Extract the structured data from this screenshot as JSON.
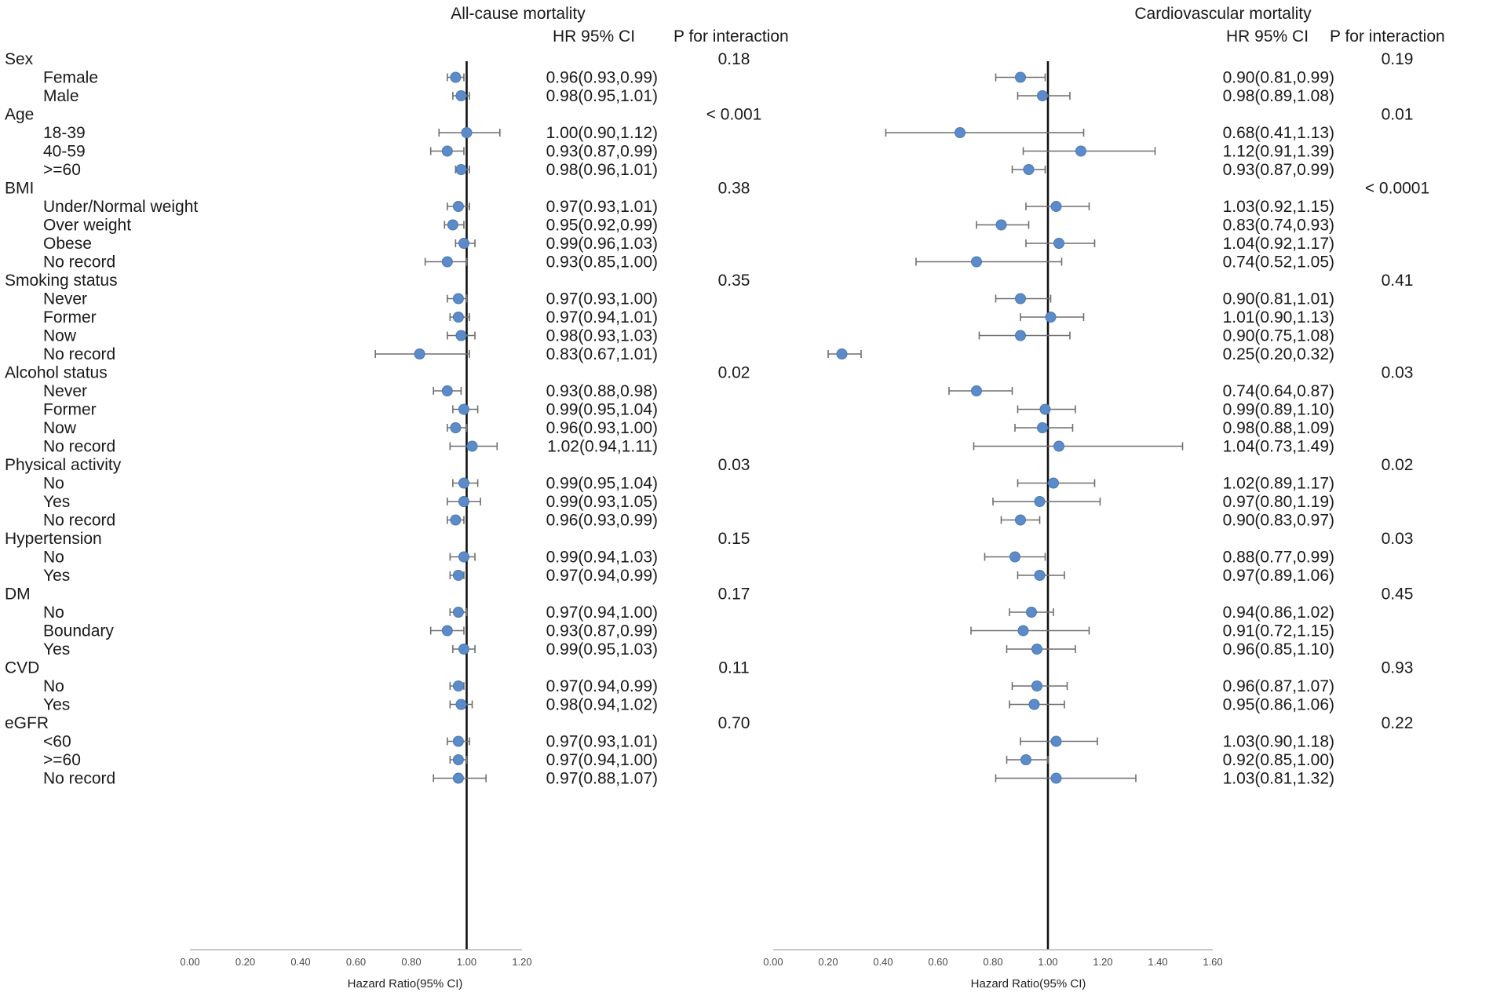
{
  "chart_data": [
    {
      "type": "forest",
      "title": "All-cause mortality",
      "hr_header": "HR 95% CI",
      "p_header": "P for interaction",
      "xlabel": "Hazard Ratio(95% CI)",
      "xlim": [
        0,
        1.2
      ],
      "ticks": [
        "0.00",
        "0.20",
        "0.40",
        "0.60",
        "0.80",
        "1.00",
        "1.20"
      ],
      "reference_line": 1.0,
      "groups": [
        {
          "label": "Sex",
          "p": "0.18",
          "rows": [
            {
              "label": "Female",
              "hr": 0.96,
              "lo": 0.93,
              "hi": 0.99,
              "text": "0.96(0.93,0.99)"
            },
            {
              "label": "Male",
              "hr": 0.98,
              "lo": 0.95,
              "hi": 1.01,
              "text": "0.98(0.95,1.01)"
            }
          ]
        },
        {
          "label": "Age",
          "p": "< 0.001",
          "rows": [
            {
              "label": "18-39",
              "hr": 1.0,
              "lo": 0.9,
              "hi": 1.12,
              "text": "1.00(0.90,1.12)"
            },
            {
              "label": "40-59",
              "hr": 0.93,
              "lo": 0.87,
              "hi": 0.99,
              "text": "0.93(0.87,0.99)"
            },
            {
              "label": ">=60",
              "hr": 0.98,
              "lo": 0.96,
              "hi": 1.01,
              "text": "0.98(0.96,1.01)"
            }
          ]
        },
        {
          "label": "BMI",
          "p": "0.38",
          "rows": [
            {
              "label": "Under/Normal weight",
              "hr": 0.97,
              "lo": 0.93,
              "hi": 1.01,
              "text": "0.97(0.93,1.01)"
            },
            {
              "label": "Over weight",
              "hr": 0.95,
              "lo": 0.92,
              "hi": 0.99,
              "text": "0.95(0.92,0.99)"
            },
            {
              "label": "Obese",
              "hr": 0.99,
              "lo": 0.96,
              "hi": 1.03,
              "text": "0.99(0.96,1.03)"
            },
            {
              "label": "No record",
              "hr": 0.93,
              "lo": 0.85,
              "hi": 1.0,
              "text": "0.93(0.85,1.00)"
            }
          ]
        },
        {
          "label": "Smoking status",
          "p": "0.35",
          "rows": [
            {
              "label": "Never",
              "hr": 0.97,
              "lo": 0.93,
              "hi": 1.0,
              "text": "0.97(0.93,1.00)"
            },
            {
              "label": "Former",
              "hr": 0.97,
              "lo": 0.94,
              "hi": 1.01,
              "text": "0.97(0.94,1.01)"
            },
            {
              "label": "Now",
              "hr": 0.98,
              "lo": 0.93,
              "hi": 1.03,
              "text": "0.98(0.93,1.03)"
            },
            {
              "label": "No record",
              "hr": 0.83,
              "lo": 0.67,
              "hi": 1.01,
              "text": "0.83(0.67,1.01)"
            }
          ]
        },
        {
          "label": "Alcohol status",
          "p": "0.02",
          "rows": [
            {
              "label": "Never",
              "hr": 0.93,
              "lo": 0.88,
              "hi": 0.98,
              "text": "0.93(0.88,0.98)"
            },
            {
              "label": "Former",
              "hr": 0.99,
              "lo": 0.95,
              "hi": 1.04,
              "text": "0.99(0.95,1.04)"
            },
            {
              "label": "Now",
              "hr": 0.96,
              "lo": 0.93,
              "hi": 1.0,
              "text": "0.96(0.93,1.00)"
            },
            {
              "label": "No record",
              "hr": 1.02,
              "lo": 0.94,
              "hi": 1.11,
              "text": "1.02(0.94,1.11)"
            }
          ]
        },
        {
          "label": "Physical activity",
          "p": "0.03",
          "rows": [
            {
              "label": "No",
              "hr": 0.99,
              "lo": 0.95,
              "hi": 1.04,
              "text": "0.99(0.95,1.04)"
            },
            {
              "label": "Yes",
              "hr": 0.99,
              "lo": 0.93,
              "hi": 1.05,
              "text": "0.99(0.93,1.05)"
            },
            {
              "label": "No record",
              "hr": 0.96,
              "lo": 0.93,
              "hi": 0.99,
              "text": "0.96(0.93,0.99)"
            }
          ]
        },
        {
          "label": "Hypertension",
          "p": "0.15",
          "rows": [
            {
              "label": "No",
              "hr": 0.99,
              "lo": 0.94,
              "hi": 1.03,
              "text": "0.99(0.94,1.03)"
            },
            {
              "label": "Yes",
              "hr": 0.97,
              "lo": 0.94,
              "hi": 0.99,
              "text": "0.97(0.94,0.99)"
            }
          ]
        },
        {
          "label": "DM",
          "p": "0.17",
          "rows": [
            {
              "label": "No",
              "hr": 0.97,
              "lo": 0.94,
              "hi": 1.0,
              "text": "0.97(0.94,1.00)"
            },
            {
              "label": "Boundary",
              "hr": 0.93,
              "lo": 0.87,
              "hi": 0.99,
              "text": "0.93(0.87,0.99)"
            },
            {
              "label": "Yes",
              "hr": 0.99,
              "lo": 0.95,
              "hi": 1.03,
              "text": "0.99(0.95,1.03)"
            }
          ]
        },
        {
          "label": "CVD",
          "p": "0.11",
          "rows": [
            {
              "label": "No",
              "hr": 0.97,
              "lo": 0.94,
              "hi": 0.99,
              "text": "0.97(0.94,0.99)"
            },
            {
              "label": "Yes",
              "hr": 0.98,
              "lo": 0.94,
              "hi": 1.02,
              "text": "0.98(0.94,1.02)"
            }
          ]
        },
        {
          "label": "eGFR",
          "p": "0.70",
          "rows": [
            {
              "label": "<60",
              "hr": 0.97,
              "lo": 0.93,
              "hi": 1.01,
              "text": "0.97(0.93,1.01)"
            },
            {
              "label": ">=60",
              "hr": 0.97,
              "lo": 0.94,
              "hi": 1.0,
              "text": "0.97(0.94,1.00)"
            },
            {
              "label": "No record",
              "hr": 0.97,
              "lo": 0.88,
              "hi": 1.07,
              "text": "0.97(0.88,1.07)"
            }
          ]
        }
      ]
    },
    {
      "type": "forest",
      "title": "Cardiovascular mortality",
      "hr_header": "HR 95% CI",
      "p_header": "P for interaction",
      "xlabel": "Hazard Ratio(95% CI)",
      "xlim": [
        0,
        1.6
      ],
      "ticks": [
        "0.00",
        "0.20",
        "0.40",
        "0.60",
        "0.80",
        "1.00",
        "1.20",
        "1.40",
        "1.60"
      ],
      "reference_line": 1.0,
      "groups": [
        {
          "label": "Sex",
          "p": "0.19",
          "rows": [
            {
              "label": "Female",
              "hr": 0.9,
              "lo": 0.81,
              "hi": 0.99,
              "text": "0.90(0.81,0.99)"
            },
            {
              "label": "Male",
              "hr": 0.98,
              "lo": 0.89,
              "hi": 1.08,
              "text": "0.98(0.89,1.08)"
            }
          ]
        },
        {
          "label": "Age",
          "p": "0.01",
          "rows": [
            {
              "label": "18-39",
              "hr": 0.68,
              "lo": 0.41,
              "hi": 1.13,
              "text": "0.68(0.41,1.13)"
            },
            {
              "label": "40-59",
              "hr": 1.12,
              "lo": 0.91,
              "hi": 1.39,
              "text": "1.12(0.91,1.39)"
            },
            {
              "label": ">=60",
              "hr": 0.93,
              "lo": 0.87,
              "hi": 0.99,
              "text": "0.93(0.87,0.99)"
            }
          ]
        },
        {
          "label": "BMI",
          "p": "< 0.0001",
          "rows": [
            {
              "label": "Under/Normal weight",
              "hr": 1.03,
              "lo": 0.92,
              "hi": 1.15,
              "text": "1.03(0.92,1.15)"
            },
            {
              "label": "Over weight",
              "hr": 0.83,
              "lo": 0.74,
              "hi": 0.93,
              "text": "0.83(0.74,0.93)"
            },
            {
              "label": "Obese",
              "hr": 1.04,
              "lo": 0.92,
              "hi": 1.17,
              "text": "1.04(0.92,1.17)"
            },
            {
              "label": "No record",
              "hr": 0.74,
              "lo": 0.52,
              "hi": 1.05,
              "text": "0.74(0.52,1.05)"
            }
          ]
        },
        {
          "label": "Smoking status",
          "p": "0.41",
          "rows": [
            {
              "label": "Never",
              "hr": 0.9,
              "lo": 0.81,
              "hi": 1.01,
              "text": "0.90(0.81,1.01)"
            },
            {
              "label": "Former",
              "hr": 1.01,
              "lo": 0.9,
              "hi": 1.13,
              "text": "1.01(0.90,1.13)"
            },
            {
              "label": "Now",
              "hr": 0.9,
              "lo": 0.75,
              "hi": 1.08,
              "text": "0.90(0.75,1.08)"
            },
            {
              "label": "No record",
              "hr": 0.25,
              "lo": 0.2,
              "hi": 0.32,
              "text": "0.25(0.20,0.32)"
            }
          ]
        },
        {
          "label": "Alcohol status",
          "p": "0.03",
          "rows": [
            {
              "label": "Never",
              "hr": 0.74,
              "lo": 0.64,
              "hi": 0.87,
              "text": "0.74(0.64,0.87)"
            },
            {
              "label": "Former",
              "hr": 0.99,
              "lo": 0.89,
              "hi": 1.1,
              "text": "0.99(0.89,1.10)"
            },
            {
              "label": "Now",
              "hr": 0.98,
              "lo": 0.88,
              "hi": 1.09,
              "text": "0.98(0.88,1.09)"
            },
            {
              "label": "No record",
              "hr": 1.04,
              "lo": 0.73,
              "hi": 1.49,
              "text": "1.04(0.73,1.49)"
            }
          ]
        },
        {
          "label": "Physical activity",
          "p": "0.02",
          "rows": [
            {
              "label": "No",
              "hr": 1.02,
              "lo": 0.89,
              "hi": 1.17,
              "text": "1.02(0.89,1.17)"
            },
            {
              "label": "Yes",
              "hr": 0.97,
              "lo": 0.8,
              "hi": 1.19,
              "text": "0.97(0.80,1.19)"
            },
            {
              "label": "No record",
              "hr": 0.9,
              "lo": 0.83,
              "hi": 0.97,
              "text": "0.90(0.83,0.97)"
            }
          ]
        },
        {
          "label": "Hypertension",
          "p": "0.03",
          "rows": [
            {
              "label": "No",
              "hr": 0.88,
              "lo": 0.77,
              "hi": 0.99,
              "text": "0.88(0.77,0.99)"
            },
            {
              "label": "Yes",
              "hr": 0.97,
              "lo": 0.89,
              "hi": 1.06,
              "text": "0.97(0.89,1.06)"
            }
          ]
        },
        {
          "label": "DM",
          "p": "0.45",
          "rows": [
            {
              "label": "No",
              "hr": 0.94,
              "lo": 0.86,
              "hi": 1.02,
              "text": "0.94(0.86,1.02)"
            },
            {
              "label": "Boundary",
              "hr": 0.91,
              "lo": 0.72,
              "hi": 1.15,
              "text": "0.91(0.72,1.15)"
            },
            {
              "label": "Yes",
              "hr": 0.96,
              "lo": 0.85,
              "hi": 1.1,
              "text": "0.96(0.85,1.10)"
            }
          ]
        },
        {
          "label": "CVD",
          "p": "0.93",
          "rows": [
            {
              "label": "No",
              "hr": 0.96,
              "lo": 0.87,
              "hi": 1.07,
              "text": "0.96(0.87,1.07)"
            },
            {
              "label": "Yes",
              "hr": 0.95,
              "lo": 0.86,
              "hi": 1.06,
              "text": "0.95(0.86,1.06)"
            }
          ]
        },
        {
          "label": "eGFR",
          "p": "0.22",
          "rows": [
            {
              "label": "<60",
              "hr": 1.03,
              "lo": 0.9,
              "hi": 1.18,
              "text": "1.03(0.90,1.18)"
            },
            {
              "label": ">=60",
              "hr": 0.92,
              "lo": 0.85,
              "hi": 1.0,
              "text": "0.92(0.85,1.00)"
            },
            {
              "label": "No record",
              "hr": 1.03,
              "lo": 0.81,
              "hi": 1.32,
              "text": "1.03(0.81,1.32)"
            }
          ]
        }
      ]
    }
  ],
  "colors": {
    "point": "#5b8bc9",
    "point_edge": "#4a78b5",
    "whisker": "#6f6f6f",
    "ref_line": "#111111",
    "axis": "#b5b5b5",
    "text": "#1a1a1a"
  }
}
